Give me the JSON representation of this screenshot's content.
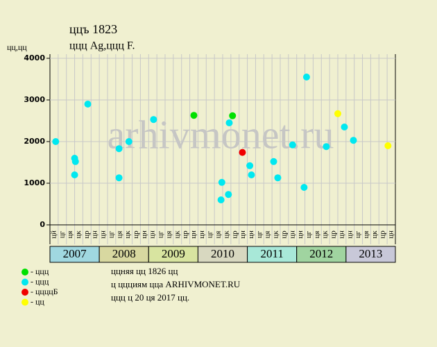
{
  "chart_data": {
    "type": "scatter",
    "title": "ццъ 1823",
    "subtitle": "ццц Ag,ццц F.",
    "y_label": "цц,цц",
    "watermark": "arhivmonet.ru",
    "ylim": [
      0,
      4000
    ],
    "yticks": [
      0,
      1000,
      2000,
      3000,
      4000
    ],
    "xlim": [
      0,
      42
    ],
    "grid": true,
    "categories": [
      "цй",
      "цг",
      "ця",
      "цк",
      "цр",
      "цн",
      "цн",
      "цг",
      "ця",
      "цк",
      "цр",
      "цн",
      "цн",
      "цг",
      "ця",
      "цк",
      "цр",
      "цн",
      "цн",
      "цг",
      "ця",
      "цк",
      "цр",
      "цн",
      "цн",
      "цг",
      "ця",
      "цк",
      "цр",
      "цн",
      "цн",
      "цг",
      "ця",
      "цк",
      "цр",
      "цн",
      "цн",
      "цг",
      "ця",
      "цк",
      "цр",
      "цн"
    ],
    "years": [
      "2007",
      "2008",
      "2009",
      "2010",
      "2011",
      "2012",
      "2013"
    ],
    "year_colors": [
      "#a0d8e0",
      "#d8d8a0",
      "#d8e4a0",
      "#d8d8c0",
      "#a8e8d8",
      "#a0d4a0",
      "#c8c8d8"
    ],
    "series": [
      {
        "name": "- ццц",
        "color": "#00e000",
        "x": [
          17.5,
          22.2
        ],
        "values": [
          2630,
          2620
        ]
      },
      {
        "name": "- ццц",
        "color": "#00e8f0",
        "x": [
          0.7,
          3.0,
          3.0,
          3.1,
          4.6,
          8.4,
          8.4,
          9.6,
          12.6,
          20.8,
          20.9,
          21.7,
          21.8,
          24.3,
          24.5,
          27.2,
          27.7,
          29.5,
          30.9,
          31.2,
          33.6,
          35.8,
          36.9
        ],
        "values": [
          2000,
          1200,
          1600,
          1520,
          2900,
          1130,
          1830,
          2000,
          2530,
          600,
          1020,
          730,
          2450,
          1420,
          1200,
          1520,
          1130,
          1920,
          900,
          3550,
          1880,
          2350,
          2030
        ]
      },
      {
        "name": "- ццццБ",
        "color": "#f00000",
        "x": [
          23.4
        ],
        "values": [
          1740
        ]
      },
      {
        "name": "- цц",
        "color": "#ffff00",
        "x": [
          35.0,
          41.1
        ],
        "values": [
          2670,
          1900
        ]
      }
    ],
    "notes": [
      "ццняя цц 1826 цц",
      "ц ццциям цца ARHIVMONET.RU",
      "ццц ц 20 ця 2017 цц."
    ]
  }
}
